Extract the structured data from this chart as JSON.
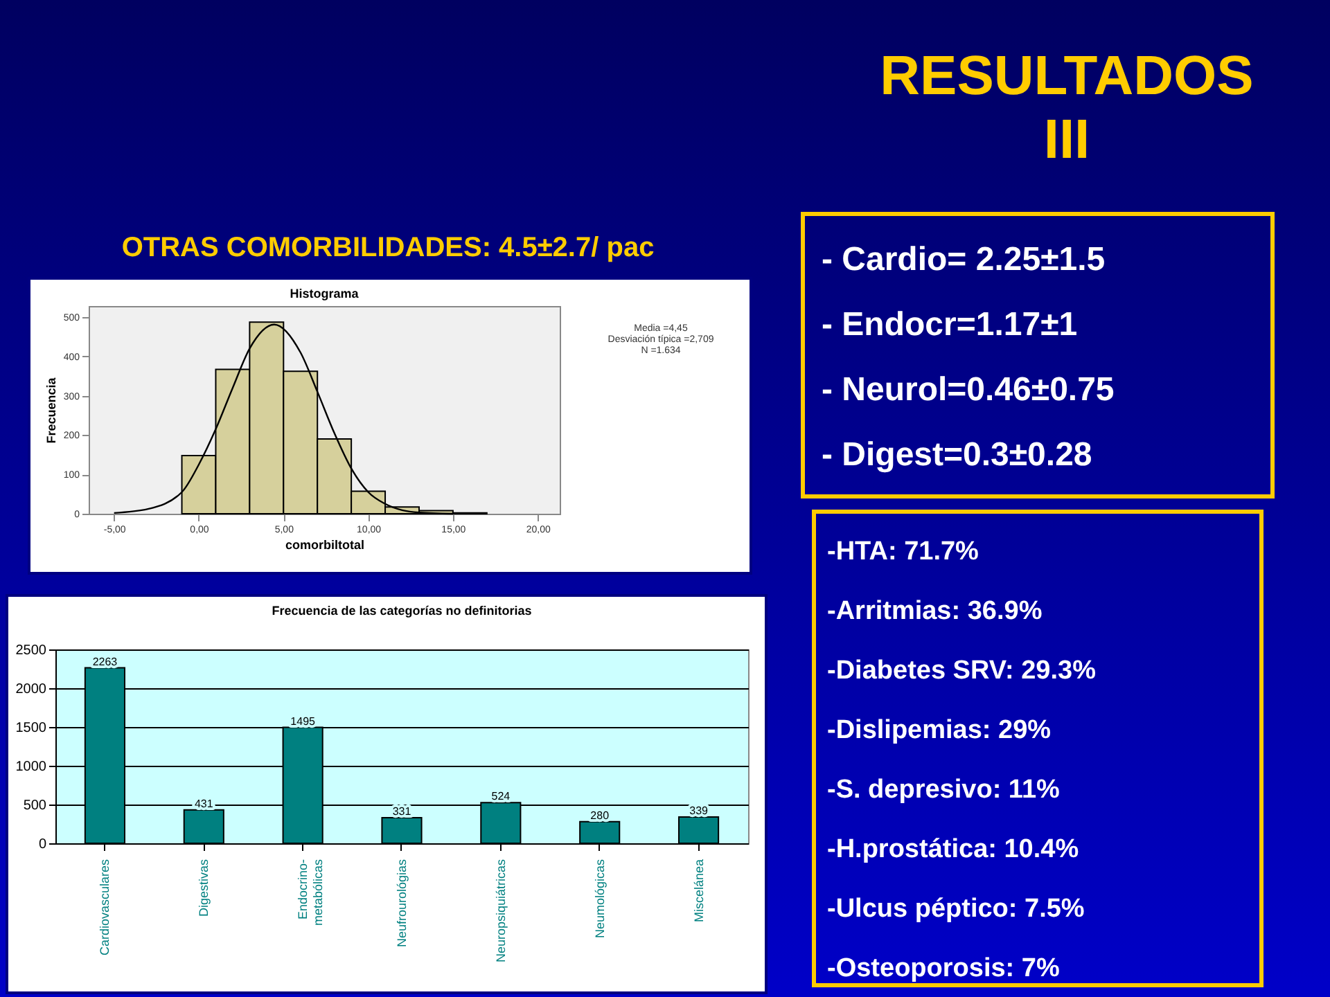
{
  "chart_data": [
    {
      "type": "histogram",
      "title": "Histograma",
      "subtitle": "OTRAS COMORBILIDADES: 4.5±2.7/ pac",
      "xlabel": "comorbiltotal",
      "ylabel": "Frecuencia",
      "color": "#d6d09c",
      "bins": [
        -1,
        1,
        3,
        5,
        7,
        9,
        11,
        13,
        15,
        17
      ],
      "values": [
        148,
        367,
        487,
        362,
        190,
        57,
        17,
        8,
        2
      ],
      "series": [
        {
          "type": "line",
          "color": "#000000",
          "x": [
            -5,
            -3,
            -1,
            0,
            1,
            2,
            3,
            4.45,
            6,
            7,
            8,
            9,
            10,
            11,
            12,
            13,
            15
          ],
          "values": [
            2,
            12,
            55,
            125,
            215,
            320,
            420,
            481,
            410,
            310,
            205,
            115,
            55,
            25,
            9,
            3,
            0
          ]
        }
      ],
      "xlim": [
        -6.5,
        21.3
      ],
      "ylim": [
        0,
        528
      ],
      "xticks": [
        {
          "value": -5,
          "label": "-5,00"
        },
        {
          "value": 0,
          "label": "0,00"
        },
        {
          "value": 5,
          "label": "5,00"
        },
        {
          "value": 10,
          "label": "10,00"
        },
        {
          "value": 15,
          "label": "15,00"
        },
        {
          "value": 20,
          "label": "20,00"
        }
      ],
      "yticks": [
        0,
        100,
        200,
        300,
        400,
        500
      ],
      "annotations": [
        "Media =4,45",
        "Desviación típica =2,709",
        "N =1.634"
      ]
    },
    {
      "type": "bar",
      "title": "Frecuencia de las categorías no definitorias",
      "categories": [
        "Cardiovasculares",
        "Digestivas",
        "Endocrino-metabólicas",
        "Neufrourológias",
        "Neuropsiquiátricas",
        "Neumológicas",
        "Miscelánea"
      ],
      "values": [
        2263,
        431,
        1495,
        331,
        524,
        280,
        339
      ],
      "color": "#008080",
      "ylim": [
        0,
        2500
      ],
      "yticks": [
        0,
        500,
        1000,
        1500,
        2000,
        2500
      ],
      "grid": "y",
      "data_labels": true
    },
    {
      "type": "other",
      "title": "RESULTADOS III",
      "annotations": [
        "- Cardio= 2.25±1.5",
        "- Endocr=1.17±1",
        "- Neurol=0.46±0.75",
        "- Digest=0.3±0.28"
      ]
    },
    {
      "type": "other",
      "annotations": [
        "-HTA: 71.7%",
        "-Arritmias: 36.9%",
        "-Diabetes SRV: 29.3%",
        "-Dislipemias: 29%",
        "-S. depresivo: 11%",
        "-H.prostática: 10.4%",
        "-Ulcus péptico: 7.5%",
        "-Osteoporosis: 7%"
      ]
    }
  ]
}
